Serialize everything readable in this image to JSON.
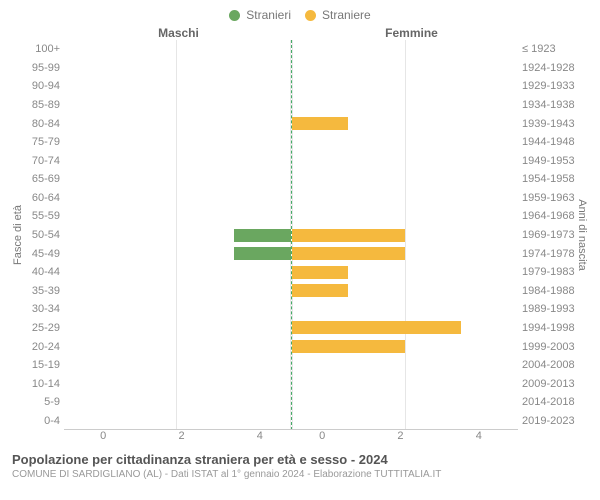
{
  "chart": {
    "type": "population-pyramid",
    "legend": [
      {
        "label": "Stranieri",
        "color": "#6aa760"
      },
      {
        "label": "Straniere",
        "color": "#f5b93e"
      }
    ],
    "header_left": "Maschi",
    "header_right": "Femmine",
    "ylabel_left": "Fasce di età",
    "ylabel_right": "Anni di nascita",
    "x_max": 4,
    "x_ticks_left": [
      "4",
      "2",
      "0"
    ],
    "x_ticks_right": [
      "0",
      "2",
      "4"
    ],
    "male_color": "#6aa760",
    "female_color": "#f5b93e",
    "grid_color": "#e6e6e6",
    "background_color": "#ffffff",
    "tick_font_size": 11,
    "label_font_size": 11,
    "rows": [
      {
        "age": "100+",
        "birth": "≤ 1923",
        "m": 0,
        "f": 0
      },
      {
        "age": "95-99",
        "birth": "1924-1928",
        "m": 0,
        "f": 0
      },
      {
        "age": "90-94",
        "birth": "1929-1933",
        "m": 0,
        "f": 0
      },
      {
        "age": "85-89",
        "birth": "1934-1938",
        "m": 0,
        "f": 0
      },
      {
        "age": "80-84",
        "birth": "1939-1943",
        "m": 0,
        "f": 1
      },
      {
        "age": "75-79",
        "birth": "1944-1948",
        "m": 0,
        "f": 0
      },
      {
        "age": "70-74",
        "birth": "1949-1953",
        "m": 0,
        "f": 0
      },
      {
        "age": "65-69",
        "birth": "1954-1958",
        "m": 0,
        "f": 0
      },
      {
        "age": "60-64",
        "birth": "1959-1963",
        "m": 0,
        "f": 0
      },
      {
        "age": "55-59",
        "birth": "1964-1968",
        "m": 0,
        "f": 0
      },
      {
        "age": "50-54",
        "birth": "1969-1973",
        "m": 1,
        "f": 2
      },
      {
        "age": "45-49",
        "birth": "1974-1978",
        "m": 1,
        "f": 2
      },
      {
        "age": "40-44",
        "birth": "1979-1983",
        "m": 0,
        "f": 1
      },
      {
        "age": "35-39",
        "birth": "1984-1988",
        "m": 0,
        "f": 1
      },
      {
        "age": "30-34",
        "birth": "1989-1993",
        "m": 0,
        "f": 0
      },
      {
        "age": "25-29",
        "birth": "1994-1998",
        "m": 0,
        "f": 3
      },
      {
        "age": "20-24",
        "birth": "1999-2003",
        "m": 0,
        "f": 2
      },
      {
        "age": "15-19",
        "birth": "2004-2008",
        "m": 0,
        "f": 0
      },
      {
        "age": "10-14",
        "birth": "2009-2013",
        "m": 0,
        "f": 0
      },
      {
        "age": "5-9",
        "birth": "2014-2018",
        "m": 0,
        "f": 0
      },
      {
        "age": "0-4",
        "birth": "2019-2023",
        "m": 0,
        "f": 0
      }
    ]
  },
  "caption": {
    "title": "Popolazione per cittadinanza straniera per età e sesso - 2024",
    "subtitle": "COMUNE DI SARDIGLIANO (AL) - Dati ISTAT al 1° gennaio 2024 - Elaborazione TUTTITALIA.IT"
  }
}
